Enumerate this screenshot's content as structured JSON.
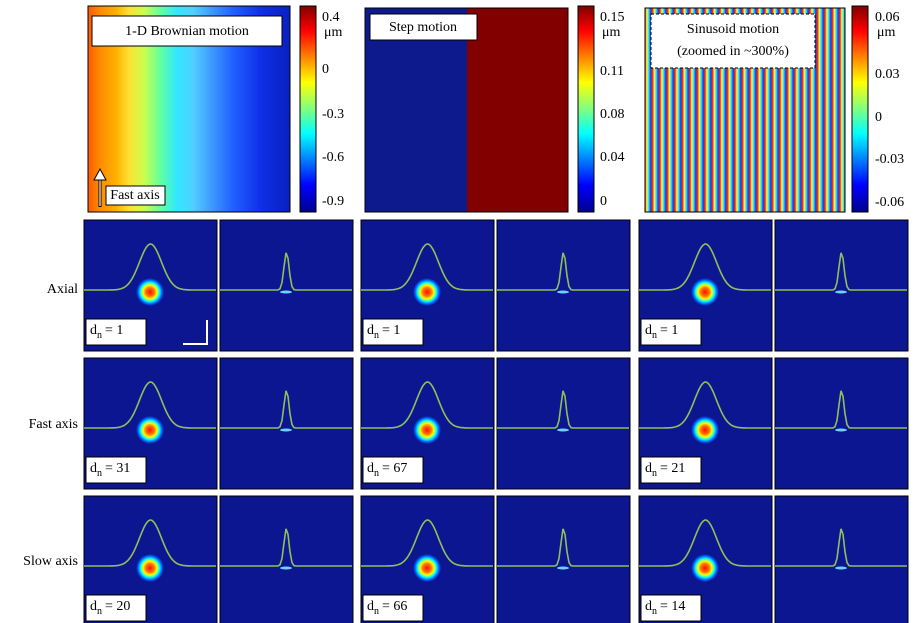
{
  "panels": [
    {
      "label": [
        "1-D Brownian motion"
      ],
      "unit": "μm",
      "ticks": [
        "0.4",
        "0",
        "-0.3",
        "-0.6",
        "-0.9"
      ],
      "annotation": "Fast axis"
    },
    {
      "label": [
        "Step motion"
      ],
      "unit": "μm",
      "ticks": [
        "0.15",
        "0.11",
        "0.08",
        "0.04",
        "0"
      ]
    },
    {
      "label": [
        "Sinusoid motion",
        "(zoomed in ~300%)"
      ],
      "unit": "μm",
      "ticks": [
        "0.06",
        "0.03",
        "0",
        "-0.03",
        "-0.06"
      ]
    }
  ],
  "rows": [
    {
      "label": "Axial",
      "dn": [
        {
          "symbol": "d",
          "subscript": "n",
          "value": "= 1"
        },
        {
          "symbol": "d",
          "subscript": "n",
          "value": "= 1"
        },
        {
          "symbol": "d",
          "subscript": "n",
          "value": "= 1"
        }
      ]
    },
    {
      "label": "Fast axis",
      "dn": [
        {
          "symbol": "d",
          "subscript": "n",
          "value": "= 31"
        },
        {
          "symbol": "d",
          "subscript": "n",
          "value": "= 67"
        },
        {
          "symbol": "d",
          "subscript": "n",
          "value": "= 21"
        }
      ]
    },
    {
      "label": "Slow axis",
      "dn": [
        {
          "symbol": "d",
          "subscript": "n",
          "value": "= 20"
        },
        {
          "symbol": "d",
          "subscript": "n",
          "value": "= 66"
        },
        {
          "symbol": "d",
          "subscript": "n",
          "value": "= 14"
        }
      ]
    }
  ]
}
